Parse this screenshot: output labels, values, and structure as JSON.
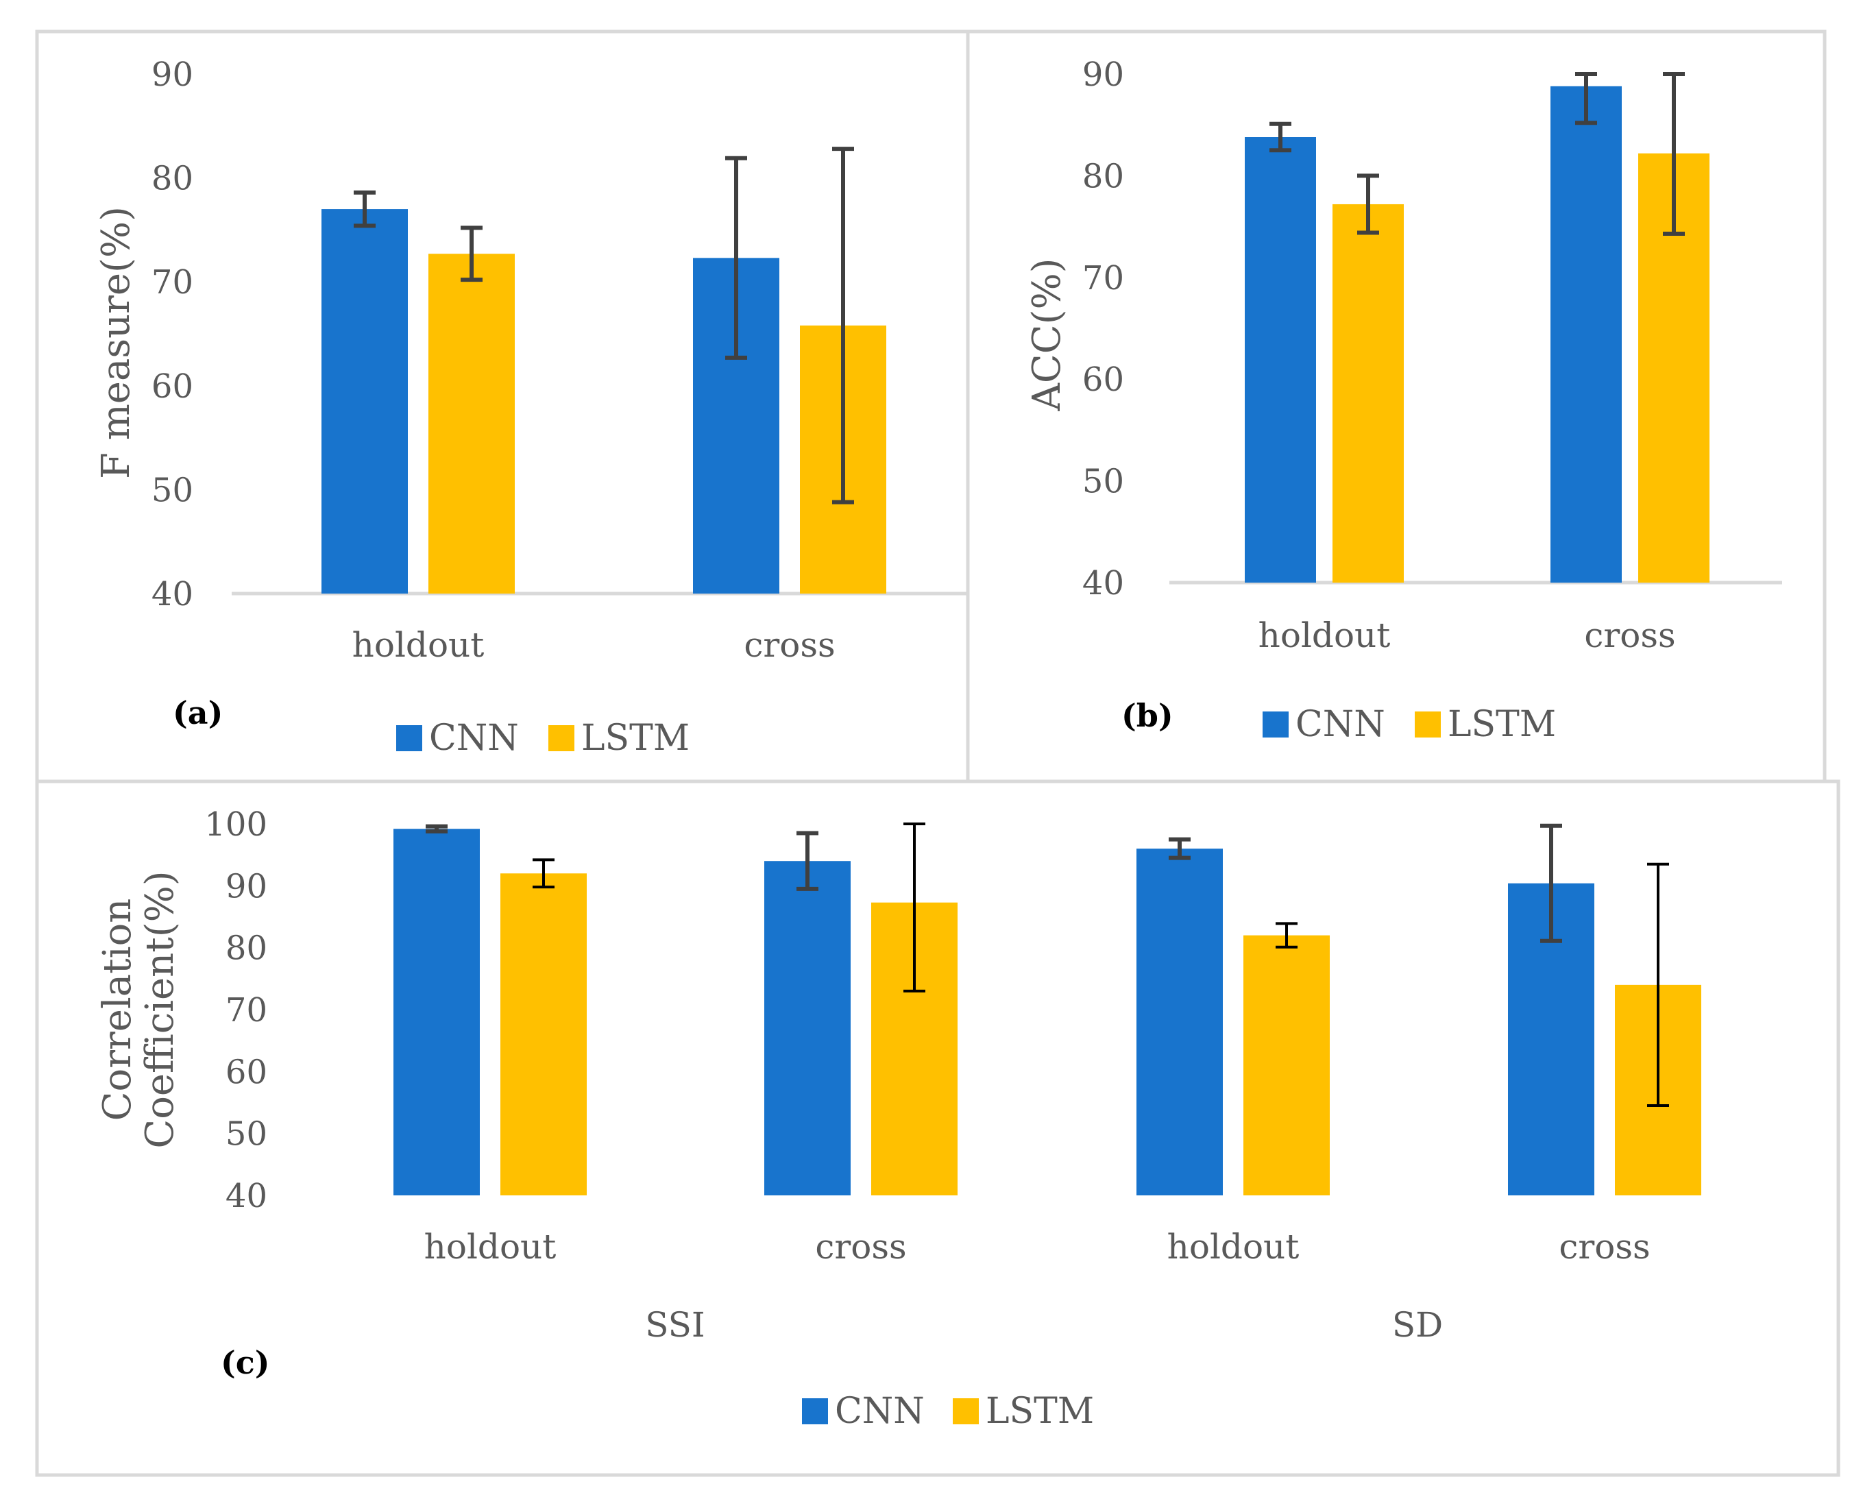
{
  "colors": {
    "cnn": "#1874CD",
    "lstm": "#FFC000",
    "axis_text": "#595959",
    "frame": "#D9D9D9",
    "error_bar": "#404040"
  },
  "chart_data": [
    {
      "id": "a",
      "type": "bar",
      "panel_label": "(a)",
      "ylabel": "F measure(%)",
      "ylim": [
        40,
        90
      ],
      "yticks": [
        90,
        80,
        70,
        60,
        50,
        40
      ],
      "categories": [
        "holdout",
        "cross"
      ],
      "series": [
        {
          "name": "CNN",
          "values": [
            77,
            72.3
          ],
          "err": [
            1.6,
            9.6
          ]
        },
        {
          "name": "LSTM",
          "values": [
            72.7,
            65.8
          ],
          "err": [
            2.5,
            17
          ]
        }
      ],
      "legend": {
        "position": "bottom",
        "entries": [
          "CNN",
          "LSTM"
        ]
      },
      "grid": false
    },
    {
      "id": "b",
      "type": "bar",
      "panel_label": "(b)",
      "ylabel": "ACC(%)",
      "ylim": [
        40,
        90
      ],
      "yticks": [
        90,
        80,
        70,
        60,
        50,
        40
      ],
      "categories": [
        "holdout",
        "cross"
      ],
      "series": [
        {
          "name": "CNN",
          "values": [
            83.8,
            88.8
          ],
          "err": [
            1.3,
            3.6
          ]
        },
        {
          "name": "LSTM",
          "values": [
            77.2,
            82.2
          ],
          "err": [
            2.8,
            7.9
          ]
        }
      ],
      "legend": {
        "position": "bottom",
        "entries": [
          "CNN",
          "LSTM"
        ]
      },
      "grid": false
    },
    {
      "id": "c",
      "type": "bar",
      "panel_label": "(c)",
      "ylabel": "Correlation Coefficient(%)",
      "ylabel_lines": [
        "Correlation",
        "Coefficient(%)"
      ],
      "ylim": [
        40,
        100
      ],
      "yticks": [
        100,
        90,
        80,
        70,
        60,
        50,
        40
      ],
      "categories": [
        "holdout",
        "cross",
        "holdout",
        "cross"
      ],
      "groups": [
        {
          "label": "SSI",
          "categories": [
            "holdout",
            "cross"
          ]
        },
        {
          "label": "SD",
          "categories": [
            "holdout",
            "cross"
          ]
        }
      ],
      "series": [
        {
          "name": "CNN",
          "values": [
            99.2,
            94,
            96,
            90.4
          ],
          "err": [
            0.4,
            4.5,
            1.5,
            9.3
          ]
        },
        {
          "name": "LSTM",
          "values": [
            92,
            87.3,
            82,
            74
          ],
          "err": [
            2.2,
            14.3,
            1.9,
            19.5
          ]
        }
      ],
      "legend": {
        "position": "bottom",
        "entries": [
          "CNN",
          "LSTM"
        ]
      },
      "grid": false
    }
  ]
}
